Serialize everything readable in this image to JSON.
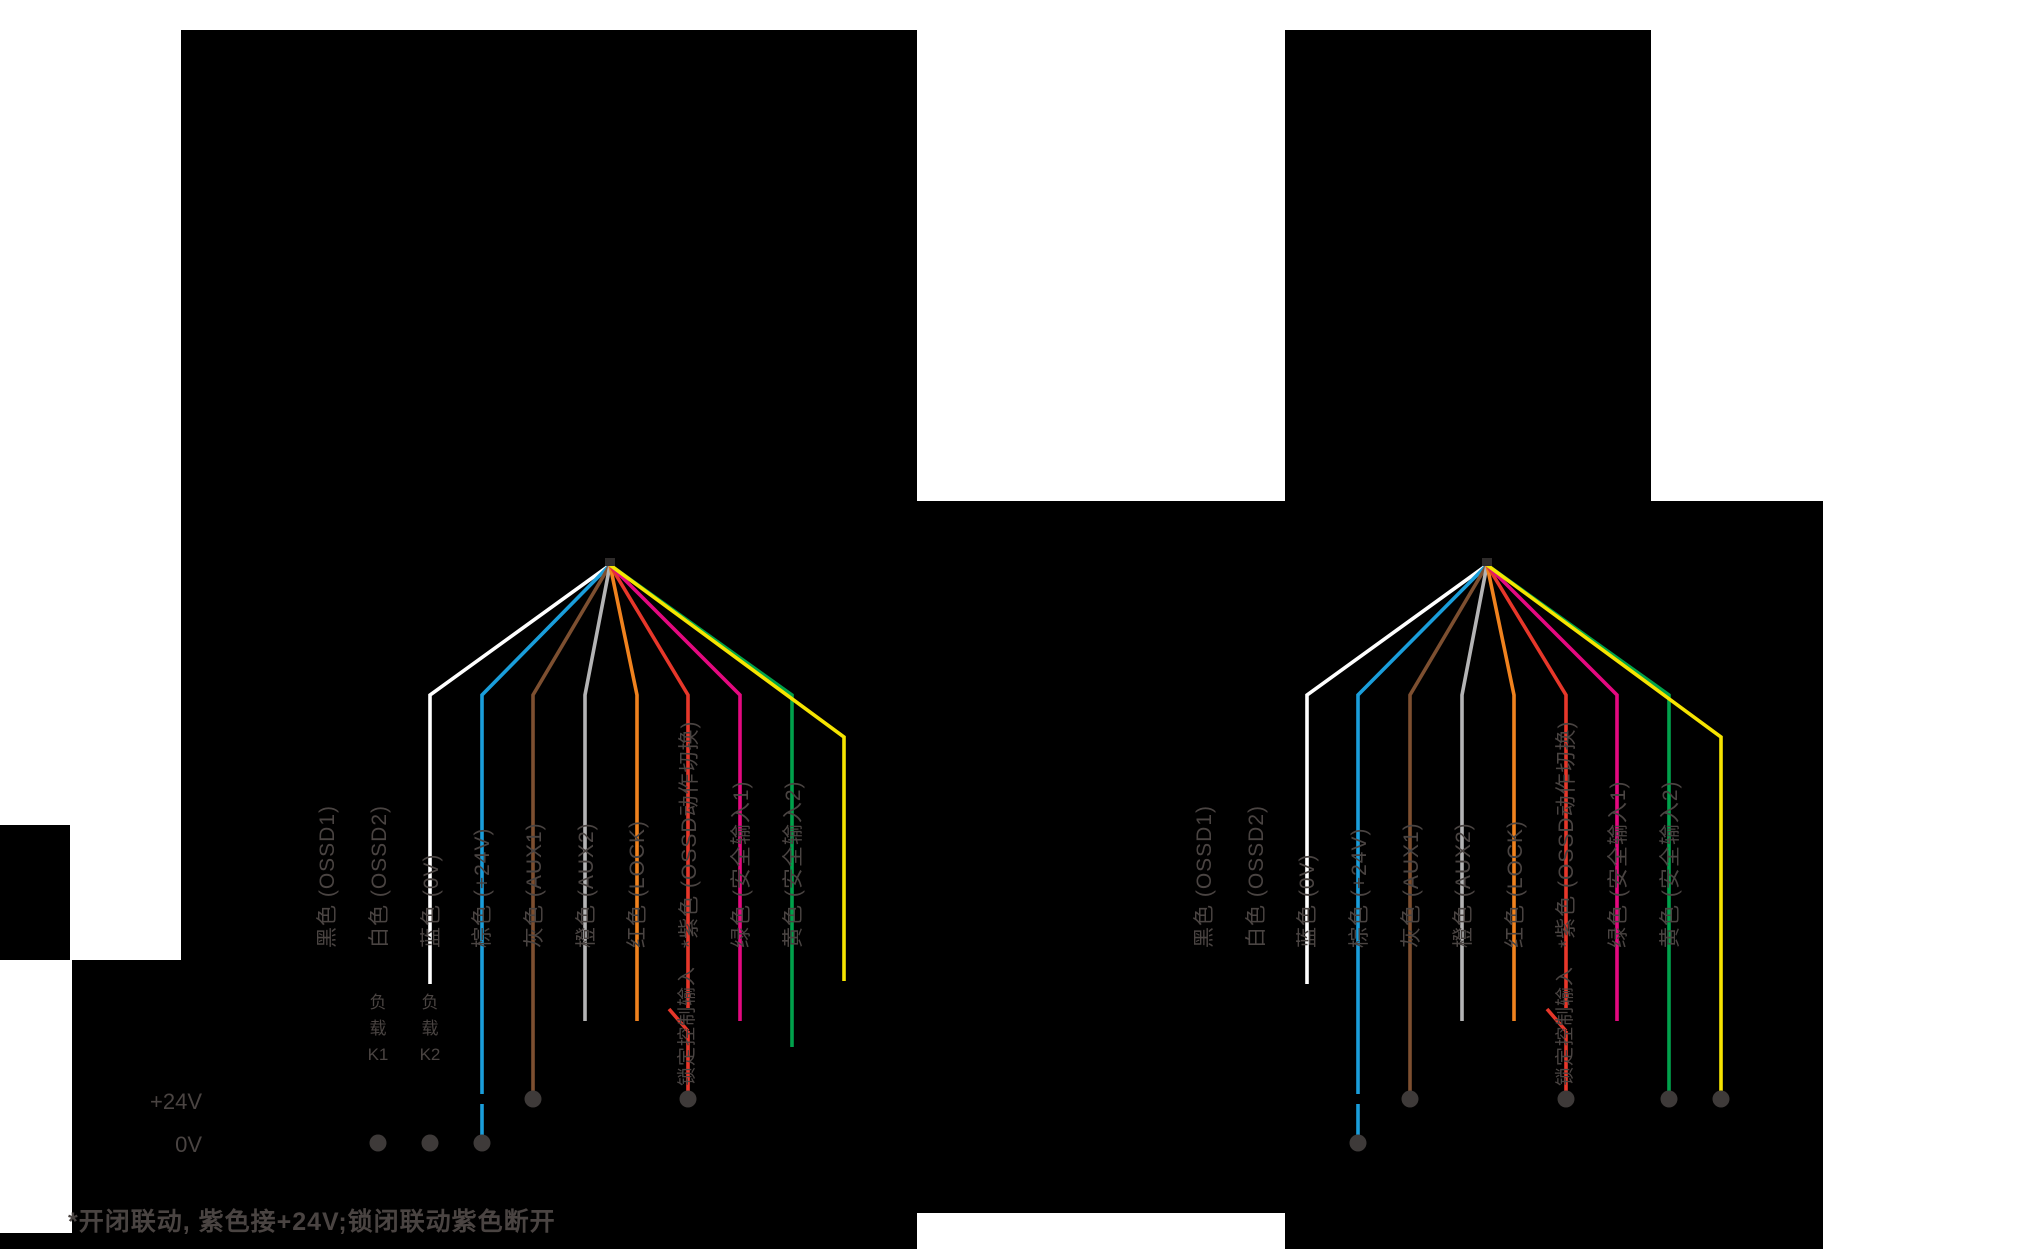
{
  "page": {
    "description": "Safety light curtain wiring diagram, two wiring variants side by side, rendered on black background",
    "colors": {
      "background": "#000000",
      "page_white": "#ffffff",
      "text_gray": "#4a4442",
      "connection_dot": "#3e3a39"
    }
  },
  "footnote": "*开闭联动, 紫色接+24V;锁闭联动紫色断开",
  "lock_input_label": "锁定控制输入",
  "left_diagram": {
    "plus24_label": "+24V",
    "zero_label": "0V",
    "load_k1": [
      "负",
      "载",
      "K1"
    ],
    "load_k2": [
      "负",
      "载",
      "K2"
    ]
  },
  "wires": [
    {
      "id": "black",
      "label": "黑色 (OSSD1)",
      "color": "#000000"
    },
    {
      "id": "white",
      "label": "白色 (OSSD2)",
      "color": "#ffffff"
    },
    {
      "id": "blue",
      "label": "蓝色 (0V)",
      "color": "#1a9edb"
    },
    {
      "id": "brown",
      "label": "棕色 (+24V)",
      "color": "#7d4f30"
    },
    {
      "id": "gray",
      "label": "灰色 (AUX1)",
      "color": "#b4b4b5"
    },
    {
      "id": "orange",
      "label": "橙色 (AUX2)",
      "color": "#f0821e"
    },
    {
      "id": "red",
      "label": "红色 (LOCK)",
      "color": "#e7372a"
    },
    {
      "id": "purple",
      "label": "*紫色 (OSSD动作切换)",
      "color": "#e40980"
    },
    {
      "id": "green",
      "label": "绿色 (安全输入1)",
      "color": "#00a14b"
    },
    {
      "id": "yellow",
      "label": "黄色 (安全输入2)",
      "color": "#f6e400"
    }
  ],
  "diagrams": [
    {
      "id": "left",
      "has_power_rail_labels": true,
      "has_load_labels": true,
      "connections": {
        "black": "load-0v",
        "white": "load-0v",
        "blue": "0v-rail",
        "brown": "24v-rail",
        "gray": "free",
        "orange": "free",
        "red": "switch-24v",
        "purple": "free",
        "green": "free",
        "yellow": "free"
      }
    },
    {
      "id": "right",
      "has_power_rail_labels": false,
      "has_load_labels": false,
      "connections": {
        "black": "free",
        "white": "free",
        "blue": "0v-rail",
        "brown": "24v-rail",
        "gray": "free",
        "orange": "free",
        "red": "switch-24v",
        "purple": "free",
        "green": "24v-rail",
        "yellow": "24v-rail"
      }
    }
  ]
}
